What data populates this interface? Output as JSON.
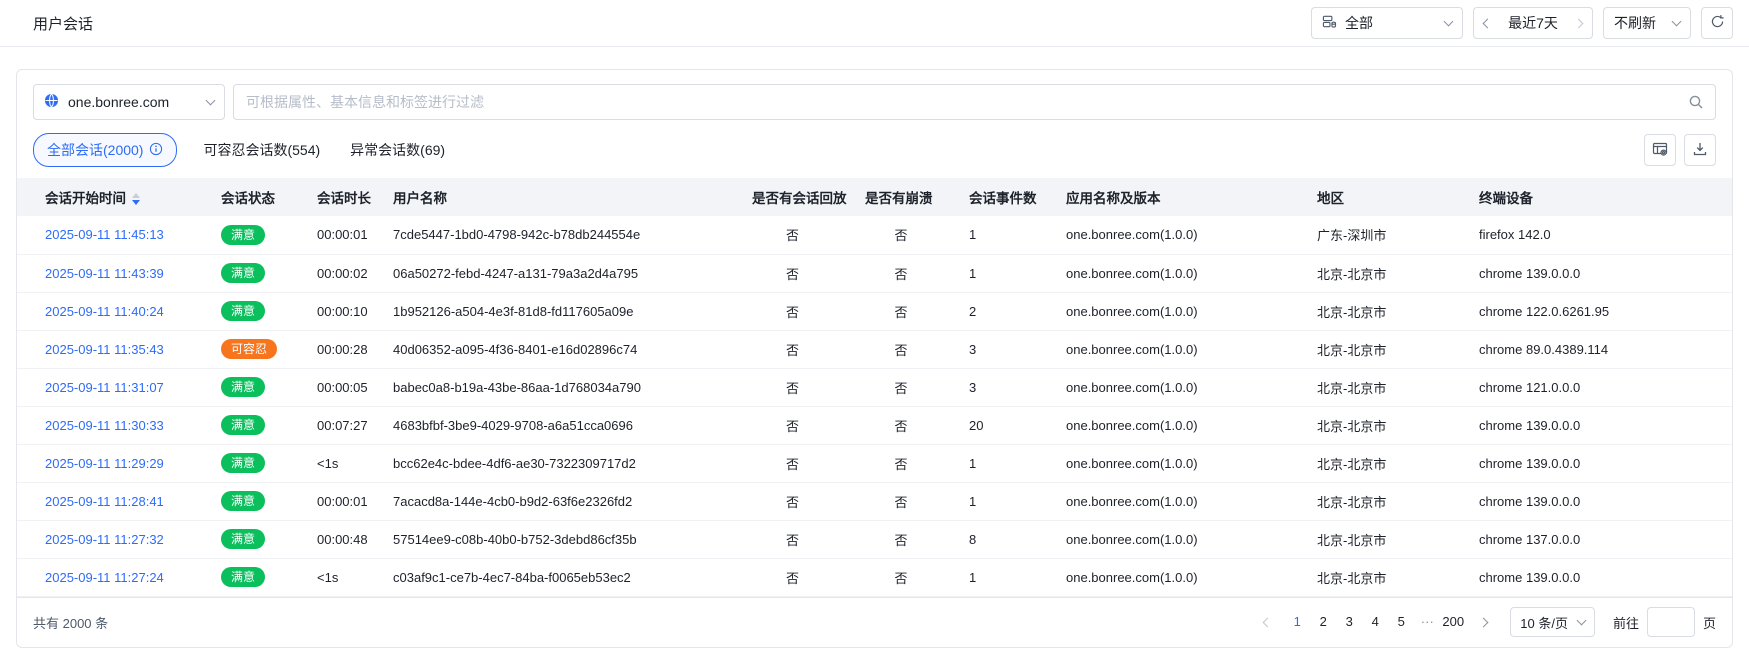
{
  "page": {
    "title": "用户会话"
  },
  "topbar": {
    "scope_select": {
      "value": "全部",
      "icon": "app-group-icon"
    },
    "date_range": {
      "value": "最近7天"
    },
    "refresh_select": {
      "value": "不刷新"
    }
  },
  "filter": {
    "app_select": {
      "value": "one.bonree.com",
      "icon": "globe-icon"
    },
    "search": {
      "placeholder": "可根据属性、基本信息和标签进行过滤"
    }
  },
  "tabs": [
    {
      "label": "全部会话(2000)",
      "active": true,
      "has_info": true
    },
    {
      "label": "可容忍会话数(554)",
      "active": false
    },
    {
      "label": "异常会话数(69)",
      "active": false
    }
  ],
  "table": {
    "columns": [
      "会话开始时间",
      "会话状态",
      "会话时长",
      "用户名称",
      "是否有会话回放",
      "是否有崩溃",
      "会话事件数",
      "应用名称及版本",
      "地区",
      "终端设备"
    ],
    "sort": {
      "column": "会话开始时间",
      "direction": "desc"
    },
    "rows": [
      {
        "start_time": "2025-09-11 11:45:13",
        "status": "满意",
        "status_type": "satisfied",
        "duration": "00:00:01",
        "user": "7cde5447-1bd0-4798-942c-b78db244554e",
        "replay": "否",
        "crash": "否",
        "events": "1",
        "app": "one.bonree.com(1.0.0)",
        "region": "广东-深圳市",
        "device": "firefox 142.0"
      },
      {
        "start_time": "2025-09-11 11:43:39",
        "status": "满意",
        "status_type": "satisfied",
        "duration": "00:00:02",
        "user": "06a50272-febd-4247-a131-79a3a2d4a795",
        "replay": "否",
        "crash": "否",
        "events": "1",
        "app": "one.bonree.com(1.0.0)",
        "region": "北京-北京市",
        "device": "chrome 139.0.0.0"
      },
      {
        "start_time": "2025-09-11 11:40:24",
        "status": "满意",
        "status_type": "satisfied",
        "duration": "00:00:10",
        "user": "1b952126-a504-4e3f-81d8-fd117605a09e",
        "replay": "否",
        "crash": "否",
        "events": "2",
        "app": "one.bonree.com(1.0.0)",
        "region": "北京-北京市",
        "device": "chrome 122.0.6261.95"
      },
      {
        "start_time": "2025-09-11 11:35:43",
        "status": "可容忍",
        "status_type": "tolerable",
        "duration": "00:00:28",
        "user": "40d06352-a095-4f36-8401-e16d02896c74",
        "replay": "否",
        "crash": "否",
        "events": "3",
        "app": "one.bonree.com(1.0.0)",
        "region": "北京-北京市",
        "device": "chrome 89.0.4389.114"
      },
      {
        "start_time": "2025-09-11 11:31:07",
        "status": "满意",
        "status_type": "satisfied",
        "duration": "00:00:05",
        "user": "babec0a8-b19a-43be-86aa-1d768034a790",
        "replay": "否",
        "crash": "否",
        "events": "3",
        "app": "one.bonree.com(1.0.0)",
        "region": "北京-北京市",
        "device": "chrome 121.0.0.0"
      },
      {
        "start_time": "2025-09-11 11:30:33",
        "status": "满意",
        "status_type": "satisfied",
        "duration": "00:07:27",
        "user": "4683bfbf-3be9-4029-9708-a6a51cca0696",
        "replay": "否",
        "crash": "否",
        "events": "20",
        "app": "one.bonree.com(1.0.0)",
        "region": "北京-北京市",
        "device": "chrome 139.0.0.0"
      },
      {
        "start_time": "2025-09-11 11:29:29",
        "status": "满意",
        "status_type": "satisfied",
        "duration": "<1s",
        "user": "bcc62e4c-bdee-4df6-ae30-7322309717d2",
        "replay": "否",
        "crash": "否",
        "events": "1",
        "app": "one.bonree.com(1.0.0)",
        "region": "北京-北京市",
        "device": "chrome 139.0.0.0"
      },
      {
        "start_time": "2025-09-11 11:28:41",
        "status": "满意",
        "status_type": "satisfied",
        "duration": "00:00:01",
        "user": "7acacd8a-144e-4cb0-b9d2-63f6e2326fd2",
        "replay": "否",
        "crash": "否",
        "events": "1",
        "app": "one.bonree.com(1.0.0)",
        "region": "北京-北京市",
        "device": "chrome 139.0.0.0"
      },
      {
        "start_time": "2025-09-11 11:27:32",
        "status": "满意",
        "status_type": "satisfied",
        "duration": "00:00:48",
        "user": "57514ee9-c08b-40b0-b752-3debd86cf35b",
        "replay": "否",
        "crash": "否",
        "events": "8",
        "app": "one.bonree.com(1.0.0)",
        "region": "北京-北京市",
        "device": "chrome 137.0.0.0"
      },
      {
        "start_time": "2025-09-11 11:27:24",
        "status": "满意",
        "status_type": "satisfied",
        "duration": "<1s",
        "user": "c03af9c1-ce7b-4ec7-84ba-f0065eb53ec2",
        "replay": "否",
        "crash": "否",
        "events": "1",
        "app": "one.bonree.com(1.0.0)",
        "region": "北京-北京市",
        "device": "chrome 139.0.0.0"
      }
    ]
  },
  "footer": {
    "total": "共有 2000 条",
    "pages": [
      "1",
      "2",
      "3",
      "4",
      "5",
      "···",
      "200"
    ],
    "active_page": "1",
    "page_size": "10 条/页",
    "jump_prefix": "前往",
    "jump_suffix": "页"
  },
  "colors": {
    "accent": "#2e6cf6",
    "satisfied": "#0abf5c",
    "tolerable": "#f7761d"
  }
}
